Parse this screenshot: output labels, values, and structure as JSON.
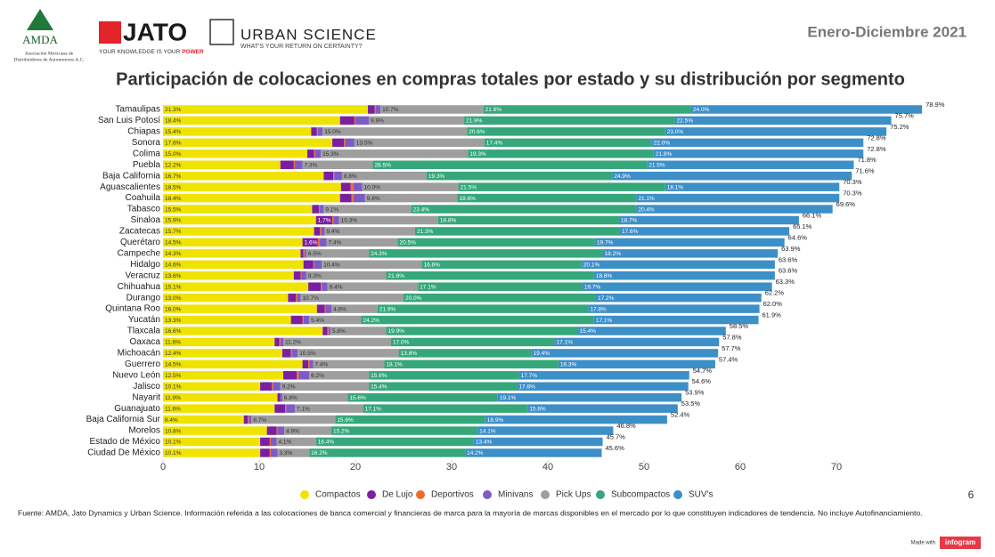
{
  "logos": {
    "amda": "AMDA",
    "amda_caption_1": "Asociación Mexicana de",
    "amda_caption_2": "Distribuidores de Automotores A.C.",
    "jato": "JATO",
    "jato_tagline": "YOUR KNOWLEDGE IS YOUR",
    "jato_tagline_em": "POWER",
    "urban_science": "URBAN SCIENCE",
    "urban_tagline": "WHAT'S YOUR RETURN ON CERTAINTY?"
  },
  "period": "Enero-Diciembre  2021",
  "page_number": "6",
  "footnote": "Fuente: AMDA, Jato Dynamics y Urban Science. Información referida a las colocaciones de banca comercial y financieras de marca para la mayoría de marcas disponibles en el mercado por lo que constituyen indicadores de tendencia. No incluye Autofinanciamiento.",
  "made_with": "Made with",
  "infogram": "infogram",
  "chart_data": {
    "type": "stacked-bar-horizontal",
    "title": "Participación de colocaciones en compras totales por estado y su distribución por segmento",
    "categories": [
      "Tamaulipas",
      "San Luis Potosí",
      "Chiapas",
      "Sonora",
      "Colima",
      "Puebla",
      "Baja California",
      "Aguascalientes",
      "Coahuila",
      "Tabasco",
      "Sinaloa",
      "Zacatecas",
      "Querétaro",
      "Campeche",
      "Hidalgo",
      "Veracruz",
      "Chihuahua",
      "Durango",
      "Quintana Roo",
      "Yucatán",
      "Tlaxcala",
      "Oaxaca",
      "Michoacán",
      "Guerrero",
      "Nuevo León",
      "Jalisco",
      "Nayarit",
      "Guanajuato",
      "Baja California Sur",
      "Morelos",
      "Estado de México",
      "Ciudad De México"
    ],
    "xlim": [
      0,
      80
    ],
    "xticks": [
      0,
      10,
      20,
      30,
      40,
      50,
      60,
      70
    ],
    "legend": "bottom",
    "series": [
      {
        "name": "Compactos",
        "color": "#f0e300",
        "values": [
          21.3,
          18.4,
          15.4,
          17.6,
          15.0,
          12.2,
          16.7,
          18.5,
          18.4,
          15.5,
          15.9,
          15.7,
          14.5,
          14.3,
          14.6,
          13.6,
          15.1,
          13.0,
          16.0,
          13.3,
          16.6,
          11.6,
          12.4,
          14.5,
          12.5,
          10.1,
          11.9,
          11.6,
          8.4,
          10.8,
          10.1,
          10.1
        ],
        "value_labels": [
          "21.3%",
          "18.4%",
          "15.4%",
          "17.6%",
          "15.0%",
          "12.2%",
          "16.7%",
          "18.5%",
          "18.4%",
          "15.5%",
          "15.9%",
          "15.7%",
          "14.5%",
          "14.3%",
          "14.6%",
          "13.6%",
          "15.1%",
          "13.0%",
          "16.0%",
          "13.3%",
          "16.6%",
          "11.6%",
          "12.4%",
          "14.5%",
          "12.5%",
          "10.1%",
          "11.9%",
          "11.6%",
          "8.4%",
          "10.8%",
          "10.1%",
          "10.1%"
        ]
      },
      {
        "name": "De Lujo",
        "color": "#7a1fa2",
        "values": [
          0.7,
          1.5,
          0.6,
          1.2,
          0.7,
          1.4,
          1.0,
          1.0,
          1.2,
          0.7,
          1.7,
          0.6,
          1.6,
          0.3,
          1.0,
          0.7,
          1.3,
          0.8,
          0.8,
          1.2,
          0.5,
          0.5,
          0.9,
          0.6,
          1.4,
          1.2,
          0.3,
          1.1,
          0.4,
          1.0,
          1.0,
          1.0
        ],
        "value_labels": [
          null,
          null,
          null,
          null,
          null,
          null,
          null,
          null,
          null,
          null,
          "1.7%",
          null,
          "1.6%",
          null,
          null,
          null,
          null,
          null,
          null,
          null,
          null,
          null,
          null,
          null,
          null,
          null,
          null,
          null,
          null,
          null,
          null,
          null
        ]
      },
      {
        "name": "Deportivos",
        "color": "#f26a2a",
        "values": [
          0.1,
          0.1,
          0.1,
          0.1,
          0.1,
          0.1,
          0.1,
          0.3,
          0.2,
          0.1,
          0.1,
          0.1,
          0.2,
          0.1,
          0.1,
          0.1,
          0.1,
          0.1,
          0.1,
          0.1,
          0.1,
          0.1,
          0.1,
          0.1,
          0.2,
          0.1,
          0.0,
          0.1,
          0.1,
          0.1,
          0.1,
          0.1
        ]
      },
      {
        "name": "Minivans",
        "color": "#7c5cc4",
        "values": [
          0.5,
          1.4,
          0.5,
          1.0,
          0.6,
          0.8,
          0.8,
          0.9,
          1.2,
          0.4,
          0.6,
          0.4,
          0.7,
          0.2,
          0.8,
          0.5,
          0.6,
          0.4,
          0.6,
          0.6,
          0.2,
          0.3,
          0.6,
          0.4,
          1.1,
          0.8,
          0.2,
          0.9,
          0.3,
          0.7,
          0.6,
          0.7
        ]
      },
      {
        "name": "Pick Ups",
        "color": "#9e9e9e",
        "values": [
          10.7,
          9.9,
          15.0,
          13.5,
          15.3,
          7.3,
          8.8,
          10.0,
          9.6,
          9.1,
          10.3,
          9.4,
          7.4,
          6.5,
          10.4,
          8.3,
          9.4,
          10.7,
          4.8,
          5.4,
          5.8,
          11.2,
          10.5,
          7.4,
          6.2,
          9.2,
          6.8,
          7.1,
          8.7,
          4.9,
          4.1,
          3.3
        ],
        "value_labels": [
          "10.7%",
          "9.9%",
          "15.0%",
          "13.5%",
          "15.3%",
          "7.3%",
          "8.8%",
          "10.0%",
          "9.6%",
          "9.1%",
          "10.3%",
          "9.4%",
          "7.4%",
          "6.5%",
          "10.4%",
          "8.3%",
          "9.4%",
          "10.7%",
          "4.8%",
          "5.4%",
          "5.8%",
          "11.2%",
          "10.5%",
          "7.4%",
          "6.2%",
          "9.2%",
          "6.8%",
          "7.1%",
          "8.7%",
          "4.9%",
          "4.1%",
          "3.3%"
        ]
      },
      {
        "name": "Subcompactos",
        "color": "#35a77a",
        "values": [
          21.6,
          21.9,
          20.6,
          17.4,
          19.3,
          28.5,
          19.3,
          21.5,
          18.6,
          23.4,
          18.8,
          21.3,
          20.5,
          24.3,
          16.6,
          21.6,
          17.1,
          20.0,
          21.9,
          24.2,
          19.9,
          17.0,
          13.8,
          18.1,
          15.6,
          15.4,
          15.6,
          17.1,
          15.6,
          15.2,
          16.4,
          16.2
        ],
        "value_labels": [
          "21.6%",
          "21.9%",
          "20.6%",
          "17.4%",
          "19.3%",
          "28.5%",
          "19.3%",
          "21.5%",
          "18.6%",
          "23.4%",
          "18.8%",
          "21.3%",
          "20.5%",
          "24.3%",
          "16.6%",
          "21.6%",
          "17.1%",
          "20.0%",
          "21.9%",
          "24.2%",
          "19.9%",
          "17.0%",
          "13.8%",
          "18.1%",
          "15.6%",
          "15.4%",
          "15.6%",
          "17.1%",
          "15.6%",
          "15.2%",
          "16.4%",
          "16.2%"
        ]
      },
      {
        "name": "SUV's",
        "color": "#3d8fc8",
        "values": [
          24.0,
          22.5,
          23.0,
          22.0,
          21.8,
          21.5,
          24.9,
          18.1,
          21.1,
          20.4,
          18.7,
          17.6,
          19.7,
          18.2,
          20.1,
          18.8,
          19.7,
          17.2,
          17.8,
          17.1,
          15.4,
          17.1,
          19.4,
          16.3,
          17.7,
          17.8,
          19.1,
          15.6,
          18.9,
          14.1,
          13.4,
          14.2
        ],
        "value_labels": [
          "24.0%",
          "22.5%",
          "23.0%",
          "22.0%",
          "21.8%",
          "21.5%",
          "24.9%",
          "18.1%",
          "21.1%",
          "20.4%",
          "18.7%",
          "17.6%",
          "19.7%",
          "18.2%",
          "20.1%",
          "18.8%",
          "19.7%",
          "17.2%",
          "17.8%",
          "17.1%",
          "15.4%",
          "17.1%",
          "19.4%",
          "16.3%",
          "17.7%",
          "17.8%",
          "19.1%",
          "15.6%",
          "18.9%",
          "14.1%",
          "13.4%",
          "14.2%"
        ]
      }
    ],
    "totals": [
      78.9,
      75.7,
      75.2,
      72.8,
      72.8,
      71.8,
      71.6,
      70.3,
      70.3,
      69.6,
      66.1,
      65.1,
      64.6,
      63.9,
      63.6,
      63.6,
      63.3,
      62.2,
      62.0,
      61.9,
      58.5,
      57.8,
      57.7,
      57.4,
      54.7,
      54.6,
      53.9,
      53.5,
      52.4,
      46.8,
      45.7,
      45.6
    ],
    "total_labels": [
      "78.9%",
      "75.7%",
      "75.2%",
      "72.8%",
      "72.8%",
      "71.8%",
      "71.6%",
      "70.3%",
      "70.3%",
      "69.6%",
      "66.1%",
      "65.1%",
      "64.6%",
      "63.9%",
      "63.6%",
      "63.6%",
      "63.3%",
      "62.2%",
      "62.0%",
      "61.9%",
      "58.5%",
      "57.8%",
      "57.7%",
      "57.4%",
      "54.7%",
      "54.6%",
      "53.9%",
      "53.5%",
      "52.4%",
      "46.8%",
      "45.7%",
      "45.6%"
    ]
  }
}
